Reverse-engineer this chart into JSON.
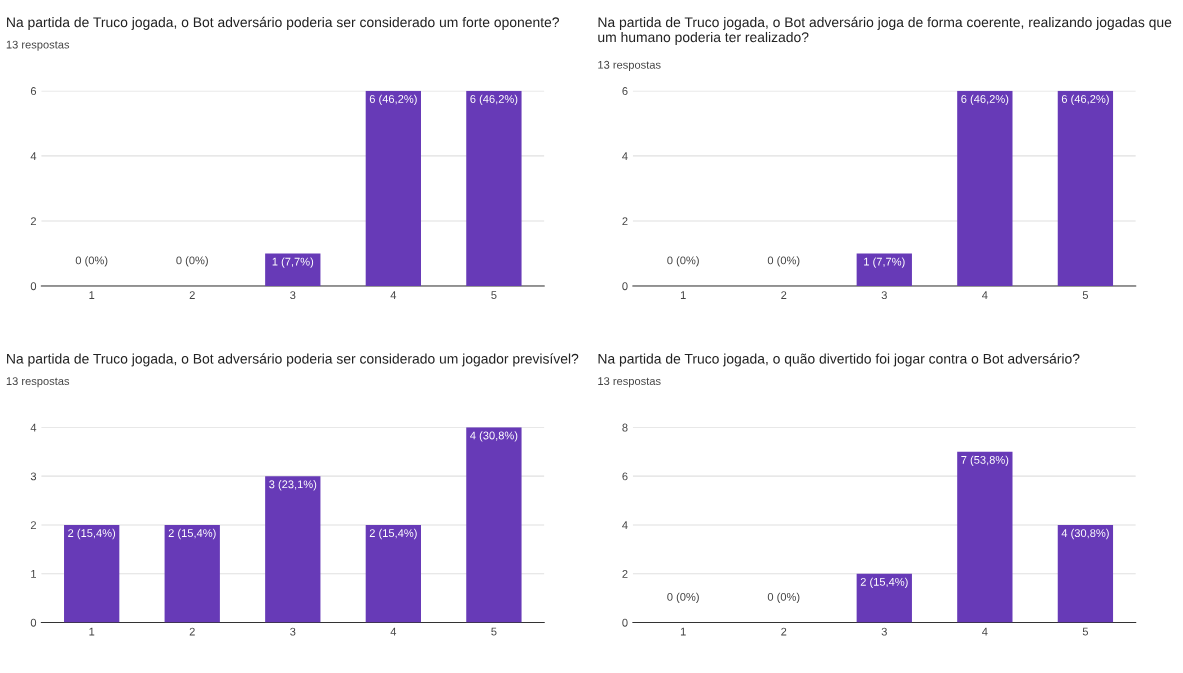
{
  "chart_data": [
    {
      "type": "bar",
      "title": "Na partida de Truco jogada, o Bot adversário poderia ser considerado um forte oponente?",
      "subtitle": "13 respostas",
      "categories": [
        "1",
        "2",
        "3",
        "4",
        "5"
      ],
      "values": [
        0,
        0,
        1,
        6,
        6
      ],
      "value_labels": [
        "0 (0%)",
        "0 (0%)",
        "1 (7,7%)",
        "6 (46,2%)",
        "6 (46,2%)"
      ],
      "color": "#673ab7",
      "ylim": [
        0,
        6
      ],
      "yticks": [
        0,
        2,
        4,
        6
      ],
      "grid": "y"
    },
    {
      "type": "bar",
      "title": "Na partida de Truco jogada, o Bot adversário joga de forma coerente, realizando jogadas que um humano poderia ter realizado?",
      "subtitle": "13 respostas",
      "categories": [
        "1",
        "2",
        "3",
        "4",
        "5"
      ],
      "values": [
        0,
        0,
        1,
        6,
        6
      ],
      "value_labels": [
        "0 (0%)",
        "0 (0%)",
        "1 (7,7%)",
        "6 (46,2%)",
        "6 (46,2%)"
      ],
      "color": "#673ab7",
      "ylim": [
        0,
        6
      ],
      "yticks": [
        0,
        2,
        4,
        6
      ],
      "grid": "y"
    },
    {
      "type": "bar",
      "title": "Na partida de Truco jogada, o Bot adversário poderia ser considerado um jogador previsível?",
      "subtitle": "13 respostas",
      "categories": [
        "1",
        "2",
        "3",
        "4",
        "5"
      ],
      "values": [
        2,
        2,
        3,
        2,
        4
      ],
      "value_labels": [
        "2 (15,4%)",
        "2 (15,4%)",
        "3 (23,1%)",
        "2 (15,4%)",
        "4 (30,8%)"
      ],
      "color": "#673ab7",
      "ylim": [
        0,
        4
      ],
      "yticks": [
        0,
        1,
        2,
        3,
        4
      ],
      "grid": "y"
    },
    {
      "type": "bar",
      "title": "Na partida de Truco jogada, o quão divertido foi jogar contra o Bot adversário?",
      "subtitle": "13 respostas",
      "categories": [
        "1",
        "2",
        "3",
        "4",
        "5"
      ],
      "values": [
        0,
        0,
        2,
        7,
        4
      ],
      "value_labels": [
        "0 (0%)",
        "0 (0%)",
        "2 (15,4%)",
        "7 (53,8%)",
        "4 (30,8%)"
      ],
      "color": "#673ab7",
      "ylim": [
        0,
        8
      ],
      "yticks": [
        0,
        2,
        4,
        6,
        8
      ],
      "grid": "y"
    }
  ]
}
